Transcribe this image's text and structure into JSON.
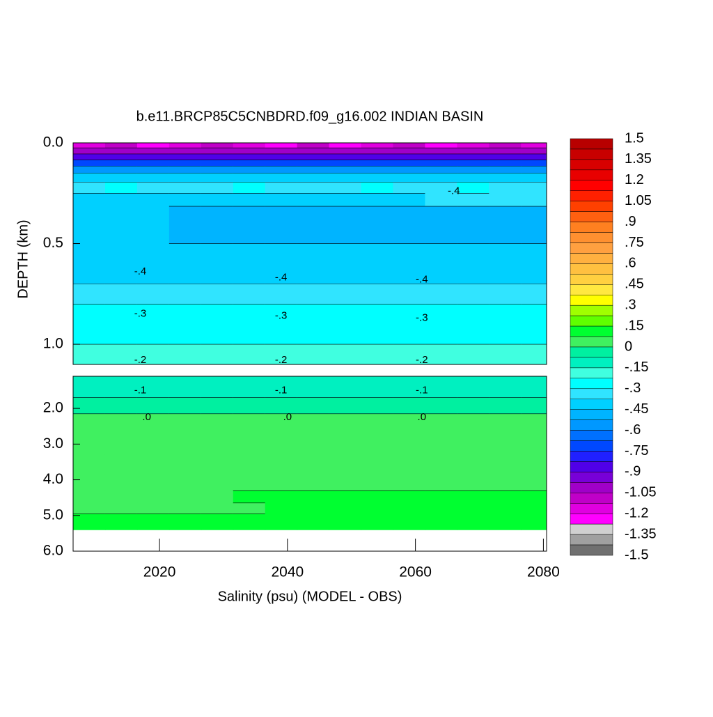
{
  "chart_data": {
    "type": "contour",
    "title": "b.e11.BRCP85C5CNBDRD.f09_g16.002 INDIAN BASIN",
    "xlabel": "Salinity (psu) (MODEL - OBS)",
    "ylabel": "DEPTH (km)",
    "y_inverted": true,
    "x": [
      2009,
      2014,
      2019,
      2024,
      2029,
      2034,
      2039,
      2044,
      2049,
      2054,
      2059,
      2064,
      2069,
      2074,
      2079
    ],
    "xlim": [
      2006.5,
      2080.5
    ],
    "xticks": [
      2020,
      2040,
      2060,
      2080
    ],
    "panels": [
      {
        "ylim": [
          0,
          1.1
        ],
        "yticks": [
          {
            "value": 0,
            "label": "0.0"
          },
          0.5,
          {
            "value": 1,
            "label": "1.0"
          }
        ],
        "depth": [
          0.01,
          0.04,
          0.07,
          0.1,
          0.13,
          0.17,
          0.22,
          0.28,
          0.35,
          0.45,
          0.55,
          0.65,
          0.75,
          0.85,
          0.95,
          1.05
        ],
        "z": [
          [
            -1.18,
            -1.12,
            -1.2,
            -1.15,
            -1.1,
            -1.18,
            -1.2,
            -1.12,
            -1.2,
            -1.15,
            -1.12,
            -1.2,
            -1.15,
            -1.1,
            -1.18
          ],
          [
            -1,
            -1,
            -1,
            -1,
            -1,
            -1,
            -1,
            -1,
            -1,
            -1,
            -1,
            -1,
            -1,
            -1,
            -1
          ],
          [
            -0.85,
            -0.85,
            -0.85,
            -0.85,
            -0.85,
            -0.85,
            -0.85,
            -0.85,
            -0.85,
            -0.85,
            -0.85,
            -0.85,
            -0.85,
            -0.85,
            -0.85
          ],
          [
            -0.7,
            -0.7,
            -0.7,
            -0.7,
            -0.7,
            -0.7,
            -0.7,
            -0.7,
            -0.7,
            -0.7,
            -0.7,
            -0.7,
            -0.7,
            -0.7,
            -0.7
          ],
          [
            -0.55,
            -0.55,
            -0.55,
            -0.55,
            -0.55,
            -0.55,
            -0.55,
            -0.55,
            -0.55,
            -0.55,
            -0.55,
            -0.55,
            -0.55,
            -0.55,
            -0.55
          ],
          [
            -0.42,
            -0.42,
            -0.42,
            -0.42,
            -0.42,
            -0.42,
            -0.42,
            -0.42,
            -0.42,
            -0.42,
            -0.42,
            -0.42,
            -0.42,
            -0.42,
            -0.42
          ],
          [
            -0.37,
            -0.29,
            -0.37,
            -0.37,
            -0.37,
            -0.29,
            -0.37,
            -0.37,
            -0.37,
            -0.29,
            -0.37,
            -0.37,
            -0.29,
            -0.37,
            -0.37
          ],
          [
            -0.4,
            -0.4,
            -0.4,
            -0.4,
            -0.4,
            -0.4,
            -0.4,
            -0.4,
            -0.4,
            -0.4,
            -0.4,
            -0.37,
            -0.37,
            -0.37,
            -0.37
          ],
          [
            -0.43,
            -0.43,
            -0.43,
            -0.47,
            -0.47,
            -0.47,
            -0.47,
            -0.47,
            -0.47,
            -0.47,
            -0.47,
            -0.47,
            -0.47,
            -0.47,
            -0.47
          ],
          [
            -0.43,
            -0.43,
            -0.43,
            -0.47,
            -0.47,
            -0.47,
            -0.47,
            -0.47,
            -0.47,
            -0.47,
            -0.47,
            -0.47,
            -0.47,
            -0.47,
            -0.47
          ],
          [
            -0.43,
            -0.43,
            -0.43,
            -0.43,
            -0.43,
            -0.43,
            -0.43,
            -0.43,
            -0.43,
            -0.43,
            -0.43,
            -0.43,
            -0.43,
            -0.43,
            -0.43
          ],
          [
            -0.4,
            -0.4,
            -0.4,
            -0.4,
            -0.4,
            -0.4,
            -0.4,
            -0.4,
            -0.4,
            -0.4,
            -0.4,
            -0.4,
            -0.4,
            -0.4,
            -0.4
          ],
          [
            -0.35,
            -0.35,
            -0.35,
            -0.35,
            -0.35,
            -0.35,
            -0.35,
            -0.35,
            -0.35,
            -0.35,
            -0.35,
            -0.35,
            -0.35,
            -0.35,
            -0.35
          ],
          [
            -0.29,
            -0.29,
            -0.29,
            -0.29,
            -0.29,
            -0.29,
            -0.29,
            -0.29,
            -0.29,
            -0.29,
            -0.29,
            -0.29,
            -0.29,
            -0.29,
            -0.29
          ],
          [
            -0.27,
            -0.27,
            -0.27,
            -0.27,
            -0.27,
            -0.27,
            -0.27,
            -0.27,
            -0.27,
            -0.27,
            -0.27,
            -0.27,
            -0.27,
            -0.27,
            -0.27
          ],
          [
            -0.2,
            -0.2,
            -0.2,
            -0.2,
            -0.2,
            -0.2,
            -0.2,
            -0.2,
            -0.2,
            -0.2,
            -0.2,
            -0.2,
            -0.2,
            -0.2,
            -0.2
          ]
        ]
      },
      {
        "ylim": [
          1.1,
          6
        ],
        "yticks": [
          {
            "value": 2,
            "label": "2.0"
          },
          {
            "value": 3,
            "label": "3.0"
          },
          {
            "value": 4,
            "label": "4.0"
          },
          {
            "value": 5,
            "label": "5.0"
          },
          {
            "value": 6,
            "label": "6.0"
          }
        ],
        "depth": [
          1.2,
          1.5,
          1.9,
          2.4,
          3.0,
          3.6,
          4.1,
          4.5,
          4.8,
          5.1,
          5.3
        ],
        "z": [
          [
            -0.14,
            -0.14,
            -0.14,
            -0.14,
            -0.14,
            -0.14,
            -0.14,
            -0.14,
            -0.14,
            -0.14,
            -0.14,
            -0.14,
            -0.14,
            -0.14,
            -0.14
          ],
          [
            -0.1,
            -0.1,
            -0.1,
            -0.1,
            -0.1,
            -0.1,
            -0.1,
            -0.1,
            -0.1,
            -0.1,
            -0.1,
            -0.1,
            -0.1,
            -0.1,
            -0.1
          ],
          [
            -0.05,
            -0.05,
            -0.05,
            -0.05,
            -0.05,
            -0.05,
            -0.05,
            -0.05,
            -0.05,
            -0.05,
            -0.05,
            -0.05,
            -0.05,
            -0.05,
            -0.05
          ],
          [
            0.02,
            0.02,
            0.02,
            0.02,
            0.02,
            0.02,
            0.02,
            0.02,
            0.02,
            0.02,
            0.02,
            0.02,
            0.02,
            0.02,
            0.02
          ],
          [
            0.03,
            0.03,
            0.03,
            0.03,
            0.03,
            0.03,
            0.03,
            0.03,
            0.03,
            0.03,
            0.03,
            0.03,
            0.03,
            0.03,
            0.03
          ],
          [
            0.03,
            0.03,
            0.03,
            0.03,
            0.03,
            0.03,
            0.03,
            0.03,
            0.03,
            0.03,
            0.03,
            0.03,
            0.03,
            0.03,
            0.03
          ],
          [
            0.04,
            0.04,
            0.04,
            0.04,
            0.04,
            0.04,
            0.04,
            0.04,
            0.04,
            0.04,
            0.04,
            0.04,
            0.04,
            0.04,
            0.04
          ],
          [
            0.04,
            0.04,
            0.04,
            0.04,
            0.04,
            0.08,
            0.08,
            0.08,
            0.08,
            0.08,
            0.08,
            0.08,
            0.08,
            0.08,
            0.08
          ],
          [
            0.06,
            0.06,
            0.06,
            0.06,
            0.06,
            0.06,
            0.09,
            0.09,
            0.09,
            0.09,
            0.09,
            0.09,
            0.09,
            0.09,
            0.09
          ],
          [
            0.09,
            0.09,
            0.09,
            0.09,
            0.09,
            0.09,
            0.09,
            0.09,
            0.09,
            0.09,
            0.09,
            0.09,
            0.09,
            0.09,
            0.09
          ],
          [
            0.09,
            0.09,
            0.09,
            0.09,
            0.09,
            0.09,
            0.09,
            0.09,
            0.09,
            0.09,
            0.09,
            0.09,
            0.09,
            0.09,
            0.09
          ]
        ]
      }
    ],
    "colorbar": {
      "ticks": [
        1.5,
        1.35,
        1.2,
        1.05,
        {
          "value": 0.9,
          "label": ".9"
        },
        {
          "value": 0.75,
          "label": ".75"
        },
        {
          "value": 0.6,
          "label": ".6"
        },
        {
          "value": 0.45,
          "label": ".45"
        },
        {
          "value": 0.3,
          "label": ".3"
        },
        {
          "value": 0.15,
          "label": ".15"
        },
        0,
        {
          "value": -0.15,
          "label": "-.15"
        },
        {
          "value": -0.3,
          "label": "-.3"
        },
        {
          "value": -0.45,
          "label": "-.45"
        },
        {
          "value": -0.6,
          "label": "-.6"
        },
        {
          "value": -0.75,
          "label": "-.75"
        },
        {
          "value": -0.9,
          "label": "-.9"
        },
        -1.05,
        -1.2,
        -1.35,
        -1.5
      ],
      "colors": [
        "#b80000",
        "#c80000",
        "#d80000",
        "#e80000",
        "#ff0000",
        "#ff2000",
        "#ff4000",
        "#ff6010",
        "#ff8020",
        "#ff9030",
        "#ffa040",
        "#ffb040",
        "#ffc040",
        "#ffd040",
        "#ffe840",
        "#ffff00",
        "#a0ff00",
        "#60ff00",
        "#00ff30",
        "#40f060",
        "#00f0a0",
        "#00f0c0",
        "#40ffe0",
        "#00ffff",
        "#30e4ff",
        "#00d0ff",
        "#00b4ff",
        "#0098ff",
        "#0070ff",
        "#0048ff",
        "#2020ff",
        "#5000e8",
        "#7800d8",
        "#a000c8",
        "#c000c8",
        "#e000e0",
        "#ff00ff",
        "#d0d0d0",
        "#a0a0a0",
        "#707070"
      ]
    },
    "contour_labels": [
      {
        "text": "-.4",
        "x": 2017,
        "depth": 0.64
      },
      {
        "text": "-.4",
        "x": 2039,
        "depth": 0.67
      },
      {
        "text": "-.4",
        "x": 2061,
        "depth": 0.68
      },
      {
        "text": "-.4",
        "x": 2066,
        "depth": 0.24
      },
      {
        "text": "-.3",
        "x": 2017,
        "depth": 0.85
      },
      {
        "text": "-.3",
        "x": 2039,
        "depth": 0.86
      },
      {
        "text": "-.3",
        "x": 2061,
        "depth": 0.87
      },
      {
        "text": "-.2",
        "x": 2017,
        "depth": 1.08
      },
      {
        "text": "-.2",
        "x": 2039,
        "depth": 1.08
      },
      {
        "text": "-.2",
        "x": 2061,
        "depth": 1.08
      },
      {
        "text": "-.1",
        "x": 2017,
        "depth": 1.5
      },
      {
        "text": "-.1",
        "x": 2039,
        "depth": 1.5
      },
      {
        "text": "-.1",
        "x": 2061,
        "depth": 1.5
      },
      {
        "text": ".0",
        "x": 2018,
        "depth": 2.25
      },
      {
        "text": ".0",
        "x": 2040,
        "depth": 2.25
      },
      {
        "text": ".0",
        "x": 2061,
        "depth": 2.25
      }
    ]
  }
}
